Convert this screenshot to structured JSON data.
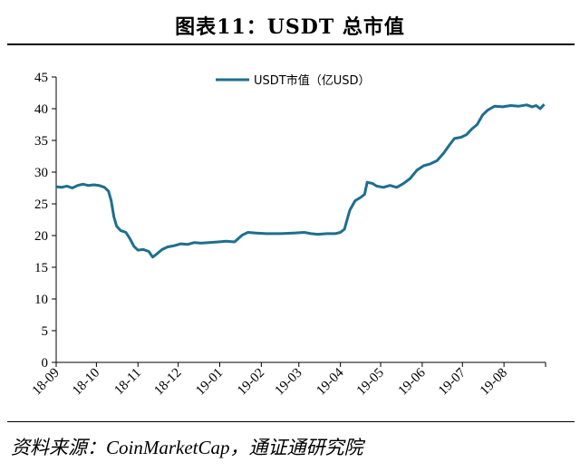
{
  "title": "图表11：USDT 总市值",
  "source": "资料来源：CoinMarketCap，通证通研究院",
  "colors": {
    "series": "#1f6e8e",
    "axis": "#000000"
  },
  "chart_data": {
    "type": "line",
    "title": "图表11：USDT 总市值",
    "xlabel": "",
    "ylabel": "",
    "ylim": [
      0,
      45
    ],
    "yticks": [
      0,
      5,
      10,
      15,
      20,
      25,
      30,
      35,
      40,
      45
    ],
    "xticks": [
      "18-09",
      "18-10",
      "18-11",
      "18-12",
      "19-01",
      "19-02",
      "19-03",
      "19-04",
      "19-05",
      "19-06",
      "19-07",
      "19-08"
    ],
    "xlim": [
      "2018-09-01",
      "2019-09-01"
    ],
    "grid": false,
    "legend_position": "top-center",
    "series": [
      {
        "name": "USDT市值（亿USD）",
        "points": [
          [
            "2018-09-01",
            27.7
          ],
          [
            "2018-09-05",
            27.6
          ],
          [
            "2018-09-09",
            27.8
          ],
          [
            "2018-09-13",
            27.5
          ],
          [
            "2018-09-17",
            27.9
          ],
          [
            "2018-09-21",
            28.1
          ],
          [
            "2018-09-25",
            27.9
          ],
          [
            "2018-09-29",
            28.0
          ],
          [
            "2018-10-03",
            27.9
          ],
          [
            "2018-10-07",
            27.6
          ],
          [
            "2018-10-10",
            27.0
          ],
          [
            "2018-10-12",
            25.5
          ],
          [
            "2018-10-14",
            23.0
          ],
          [
            "2018-10-16",
            21.5
          ],
          [
            "2018-10-19",
            20.8
          ],
          [
            "2018-10-23",
            20.5
          ],
          [
            "2018-10-26",
            19.5
          ],
          [
            "2018-10-29",
            18.3
          ],
          [
            "2018-11-01",
            17.7
          ],
          [
            "2018-11-05",
            17.8
          ],
          [
            "2018-11-09",
            17.5
          ],
          [
            "2018-11-12",
            16.6
          ],
          [
            "2018-11-15",
            17.1
          ],
          [
            "2018-11-19",
            17.8
          ],
          [
            "2018-11-23",
            18.2
          ],
          [
            "2018-11-28",
            18.4
          ],
          [
            "2018-12-03",
            18.7
          ],
          [
            "2018-12-08",
            18.6
          ],
          [
            "2018-12-13",
            18.9
          ],
          [
            "2018-12-18",
            18.8
          ],
          [
            "2018-12-24",
            18.9
          ],
          [
            "2018-12-31",
            19.0
          ],
          [
            "2019-01-06",
            19.1
          ],
          [
            "2019-01-12",
            19.0
          ],
          [
            "2019-01-18",
            20.1
          ],
          [
            "2019-01-22",
            20.5
          ],
          [
            "2019-01-28",
            20.4
          ],
          [
            "2019-02-05",
            20.3
          ],
          [
            "2019-02-15",
            20.3
          ],
          [
            "2019-02-25",
            20.4
          ],
          [
            "2019-03-05",
            20.5
          ],
          [
            "2019-03-10",
            20.3
          ],
          [
            "2019-03-15",
            20.2
          ],
          [
            "2019-03-22",
            20.3
          ],
          [
            "2019-03-28",
            20.3
          ],
          [
            "2019-04-01",
            20.5
          ],
          [
            "2019-04-04",
            21.0
          ],
          [
            "2019-04-06",
            22.5
          ],
          [
            "2019-04-08",
            24.0
          ],
          [
            "2019-04-12",
            25.5
          ],
          [
            "2019-04-16",
            26.0
          ],
          [
            "2019-04-19",
            26.5
          ],
          [
            "2019-04-21",
            28.4
          ],
          [
            "2019-04-25",
            28.2
          ],
          [
            "2019-04-28",
            27.8
          ],
          [
            "2019-05-03",
            27.6
          ],
          [
            "2019-05-08",
            27.9
          ],
          [
            "2019-05-13",
            27.6
          ],
          [
            "2019-05-18",
            28.2
          ],
          [
            "2019-05-23",
            29.0
          ],
          [
            "2019-05-28",
            30.3
          ],
          [
            "2019-06-02",
            31.0
          ],
          [
            "2019-06-07",
            31.3
          ],
          [
            "2019-06-12",
            31.8
          ],
          [
            "2019-06-17",
            33.0
          ],
          [
            "2019-06-21",
            34.2
          ],
          [
            "2019-06-25",
            35.3
          ],
          [
            "2019-06-30",
            35.5
          ],
          [
            "2019-07-04",
            35.9
          ],
          [
            "2019-07-08",
            36.8
          ],
          [
            "2019-07-12",
            37.5
          ],
          [
            "2019-07-16",
            39.0
          ],
          [
            "2019-07-20",
            39.8
          ],
          [
            "2019-07-25",
            40.4
          ],
          [
            "2019-07-31",
            40.3
          ],
          [
            "2019-08-06",
            40.5
          ],
          [
            "2019-08-12",
            40.4
          ],
          [
            "2019-08-18",
            40.6
          ],
          [
            "2019-08-22",
            40.3
          ],
          [
            "2019-08-25",
            40.5
          ],
          [
            "2019-08-28",
            40.0
          ],
          [
            "2019-08-31",
            40.7
          ]
        ]
      }
    ]
  }
}
